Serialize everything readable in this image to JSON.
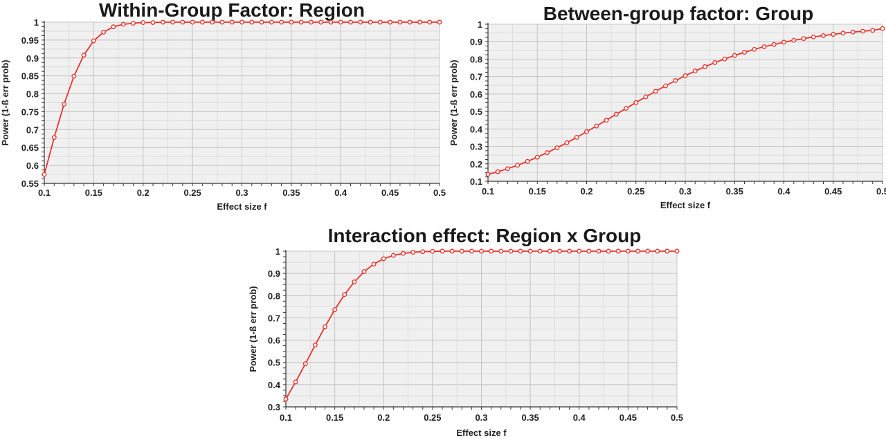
{
  "chart_data": [
    {
      "type": "line",
      "title": "Within-Group Factor: Region",
      "xlabel": "Effect size f",
      "ylabel": "Power (1-ß err prob)",
      "xlim": [
        0.1,
        0.5
      ],
      "ylim": [
        0.55,
        1.0
      ],
      "xticks": [
        "0.1",
        "0.15",
        "0.2",
        "0.25",
        "0.3",
        "0.35",
        "0.4",
        "0.45",
        "0.5"
      ],
      "yticks": [
        "0.55",
        "0.6",
        "0.65",
        "0.7",
        "0.75",
        "0.8",
        "0.85",
        "0.9",
        "0.95",
        "1"
      ],
      "grid": true,
      "line_color": "#e8322c",
      "x": [
        0.1,
        0.11,
        0.12,
        0.13,
        0.14,
        0.15,
        0.16,
        0.17,
        0.18,
        0.19,
        0.2,
        0.21,
        0.22,
        0.23,
        0.24,
        0.25,
        0.26,
        0.27,
        0.28,
        0.29,
        0.3,
        0.31,
        0.32,
        0.33,
        0.34,
        0.35,
        0.36,
        0.37,
        0.38,
        0.39,
        0.4,
        0.41,
        0.42,
        0.43,
        0.44,
        0.45,
        0.46,
        0.47,
        0.48,
        0.49,
        0.5
      ],
      "values": [
        0.575,
        0.678,
        0.771,
        0.849,
        0.908,
        0.948,
        0.972,
        0.987,
        0.994,
        0.997,
        0.999,
        0.999,
        1,
        1,
        1,
        1,
        1,
        1,
        1,
        1,
        1,
        1,
        1,
        1,
        1,
        1,
        1,
        1,
        1,
        1,
        1,
        1,
        1,
        1,
        1,
        1,
        1,
        1,
        1,
        1,
        1
      ]
    },
    {
      "type": "line",
      "title": "Between-group factor: Group",
      "xlabel": "Effect size f",
      "ylabel": "Power (1-ß err prob)",
      "xlim": [
        0.1,
        0.5
      ],
      "ylim": [
        0.1,
        1.0
      ],
      "xticks": [
        "0.1",
        "0.15",
        "0.2",
        "0.25",
        "0.3",
        "0.35",
        "0.4",
        "0.45",
        "0.5"
      ],
      "yticks": [
        "0.1",
        "0.2",
        "0.3",
        "0.4",
        "0.5",
        "0.6",
        "0.7",
        "0.8",
        "0.9",
        "1"
      ],
      "grid": true,
      "line_color": "#e8322c",
      "x": [
        0.1,
        0.11,
        0.12,
        0.13,
        0.14,
        0.15,
        0.16,
        0.17,
        0.18,
        0.19,
        0.2,
        0.21,
        0.22,
        0.23,
        0.24,
        0.25,
        0.26,
        0.27,
        0.28,
        0.29,
        0.3,
        0.31,
        0.32,
        0.33,
        0.34,
        0.35,
        0.36,
        0.37,
        0.38,
        0.39,
        0.4,
        0.41,
        0.42,
        0.43,
        0.44,
        0.45,
        0.46,
        0.47,
        0.48,
        0.49,
        0.5
      ],
      "values": [
        0.14,
        0.155,
        0.172,
        0.192,
        0.214,
        0.238,
        0.264,
        0.292,
        0.321,
        0.352,
        0.384,
        0.417,
        0.45,
        0.484,
        0.518,
        0.551,
        0.584,
        0.616,
        0.647,
        0.677,
        0.705,
        0.732,
        0.757,
        0.78,
        0.801,
        0.821,
        0.839,
        0.856,
        0.871,
        0.884,
        0.897,
        0.908,
        0.918,
        0.927,
        0.935,
        0.942,
        0.949,
        0.955,
        0.96,
        0.965,
        0.975
      ]
    },
    {
      "type": "line",
      "title": "Interaction effect: Region x Group",
      "xlabel": "Effect size f",
      "ylabel": "Power (1-ß err prob)",
      "xlim": [
        0.1,
        0.5
      ],
      "ylim": [
        0.3,
        1.0
      ],
      "xticks": [
        "0.1",
        "0.15",
        "0.2",
        "0.25",
        "0.3",
        "0.35",
        "0.4",
        "0.45",
        "0.5"
      ],
      "yticks": [
        "0.3",
        "0.4",
        "0.5",
        "0.6",
        "0.7",
        "0.8",
        "0.9",
        "1"
      ],
      "grid": true,
      "line_color": "#e8322c",
      "x": [
        0.1,
        0.11,
        0.12,
        0.13,
        0.14,
        0.15,
        0.16,
        0.17,
        0.18,
        0.19,
        0.2,
        0.21,
        0.22,
        0.23,
        0.24,
        0.25,
        0.26,
        0.27,
        0.28,
        0.29,
        0.3,
        0.31,
        0.32,
        0.33,
        0.34,
        0.35,
        0.36,
        0.37,
        0.38,
        0.39,
        0.4,
        0.41,
        0.42,
        0.43,
        0.44,
        0.45,
        0.46,
        0.47,
        0.48,
        0.49,
        0.5
      ],
      "values": [
        0.335,
        0.412,
        0.494,
        0.578,
        0.66,
        0.737,
        0.805,
        0.862,
        0.908,
        0.942,
        0.966,
        0.981,
        0.99,
        0.995,
        0.998,
        0.999,
        1,
        1,
        1,
        1,
        1,
        1,
        1,
        1,
        1,
        1,
        1,
        1,
        1,
        1,
        1,
        1,
        1,
        1,
        1,
        1,
        1,
        1,
        1,
        1,
        1
      ]
    }
  ]
}
